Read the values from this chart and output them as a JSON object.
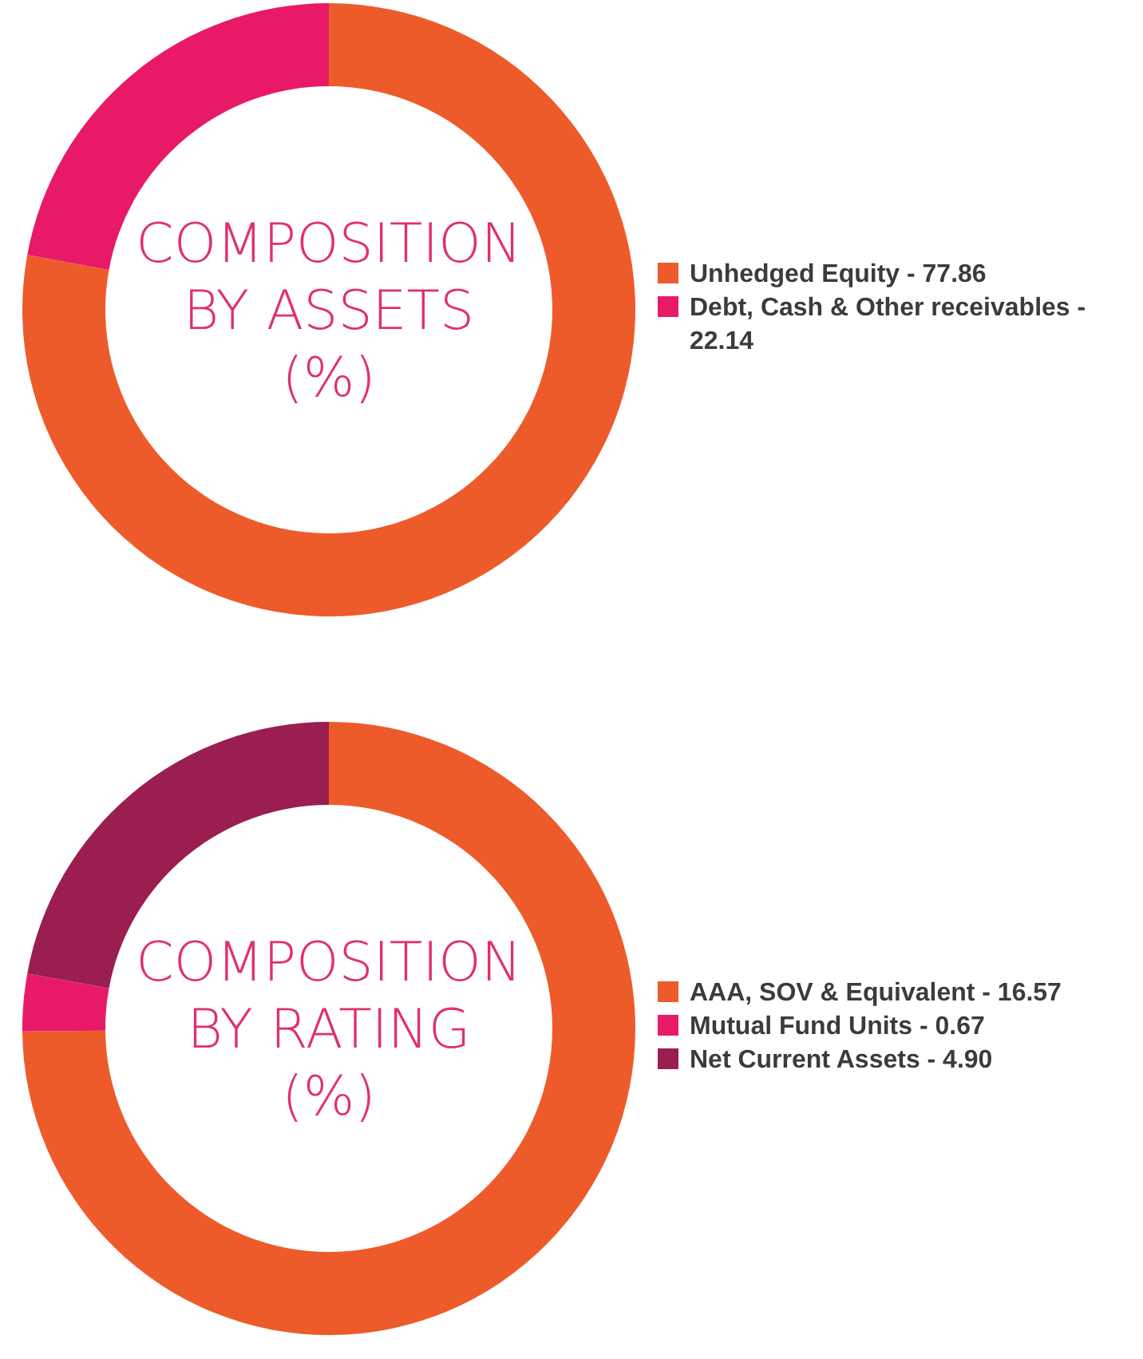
{
  "chart_data": [
    {
      "type": "donut",
      "title": "COMPOSITION BY ASSETS (%)",
      "categories": [
        "Unhedged Equity -",
        "Debt, Cash & Other receivables -"
      ],
      "values": [
        77.86,
        22.14
      ],
      "value_labels": [
        "77.86",
        "22.14"
      ],
      "colors": [
        "#ee5b2b",
        "#e81a68"
      ],
      "legend": "right"
    },
    {
      "type": "donut",
      "title": "COMPOSITION BY RATING (%)",
      "categories": [
        "AAA, SOV & Equivalent -",
        "Mutual Fund Units -",
        "Net Current Assets -"
      ],
      "values": [
        16.57,
        0.67,
        4.9
      ],
      "value_labels": [
        "16.57",
        "0.67",
        "4.90"
      ],
      "colors": [
        "#ee5b2b",
        "#e81a68",
        "#9a1e50"
      ],
      "legend": "right"
    }
  ]
}
